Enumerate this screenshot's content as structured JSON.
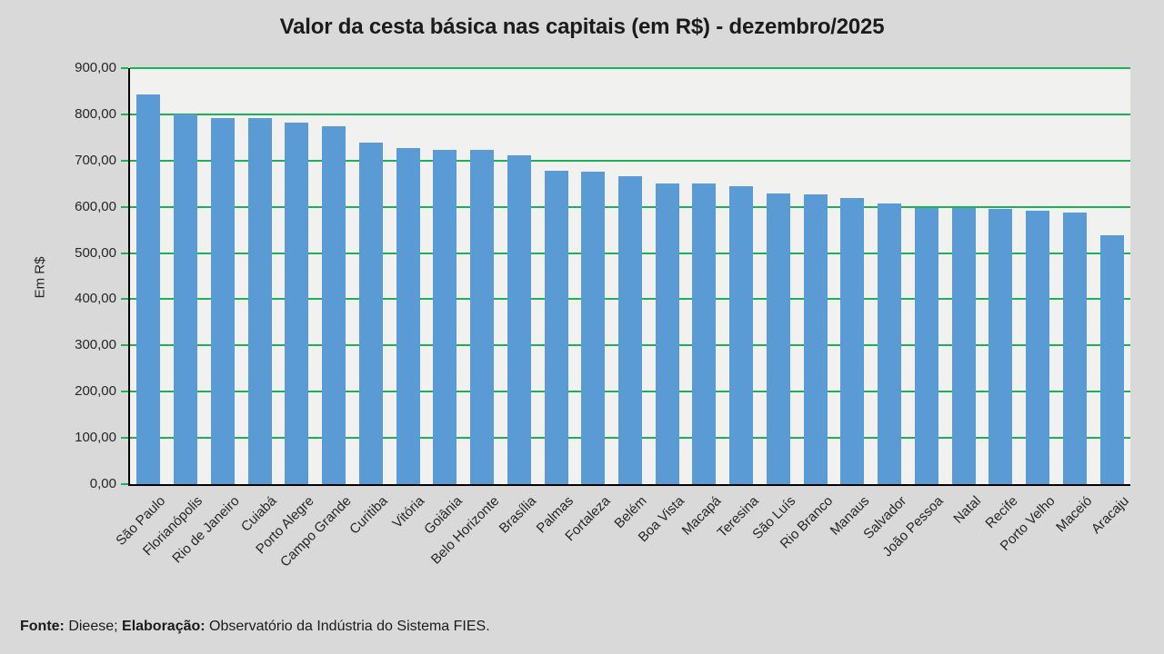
{
  "title": "Valor da cesta básica nas capitais (em R$) - dezembro/2025",
  "footer": {
    "fonte_label": "Fonte:",
    "fonte_text": " Dieese; ",
    "elaboracao_label": "Elaboração:",
    "elaboracao_text": " Observatório da Indústria do Sistema FIES."
  },
  "colors": {
    "background": "#d9d9d9",
    "plot_background": "#f1f1f0",
    "bar": "#5b9bd5",
    "gridline": "#1db157",
    "axis": "#000000",
    "text": "#262626"
  },
  "chart_data": {
    "type": "bar",
    "title": "Valor da cesta básica nas capitais (em R$) - dezembro/2025",
    "xlabel": "",
    "ylabel": "Em R$",
    "ylim": [
      0,
      900
    ],
    "ytick_step": 100,
    "ytick_labels": [
      "0,00",
      "100,00",
      "200,00",
      "300,00",
      "400,00",
      "500,00",
      "600,00",
      "700,00",
      "800,00",
      "900,00"
    ],
    "grid": true,
    "legend": false,
    "categories": [
      "São Paulo",
      "Florianópolis",
      "Rio de Janeiro",
      "Cuiabá",
      "Porto Alegre",
      "Campo Grande",
      "Curitiba",
      "Vitória",
      "Goiânia",
      "Belo Horizonte",
      "Brasília",
      "Palmas",
      "Fortaleza",
      "Belém",
      "Boa Vista",
      "Macapá",
      "Teresina",
      "São Luís",
      "Rio Branco",
      "Manaus",
      "Salvador",
      "João Pessoa",
      "Natal",
      "Recife",
      "Porto Velho",
      "Maceió",
      "Aracaju"
    ],
    "values": [
      844,
      800,
      792,
      792,
      782,
      775,
      738,
      727,
      724,
      723,
      712,
      678,
      676,
      667,
      651,
      650,
      644,
      629,
      626,
      620,
      607,
      598,
      597,
      596,
      591,
      588,
      538
    ]
  }
}
